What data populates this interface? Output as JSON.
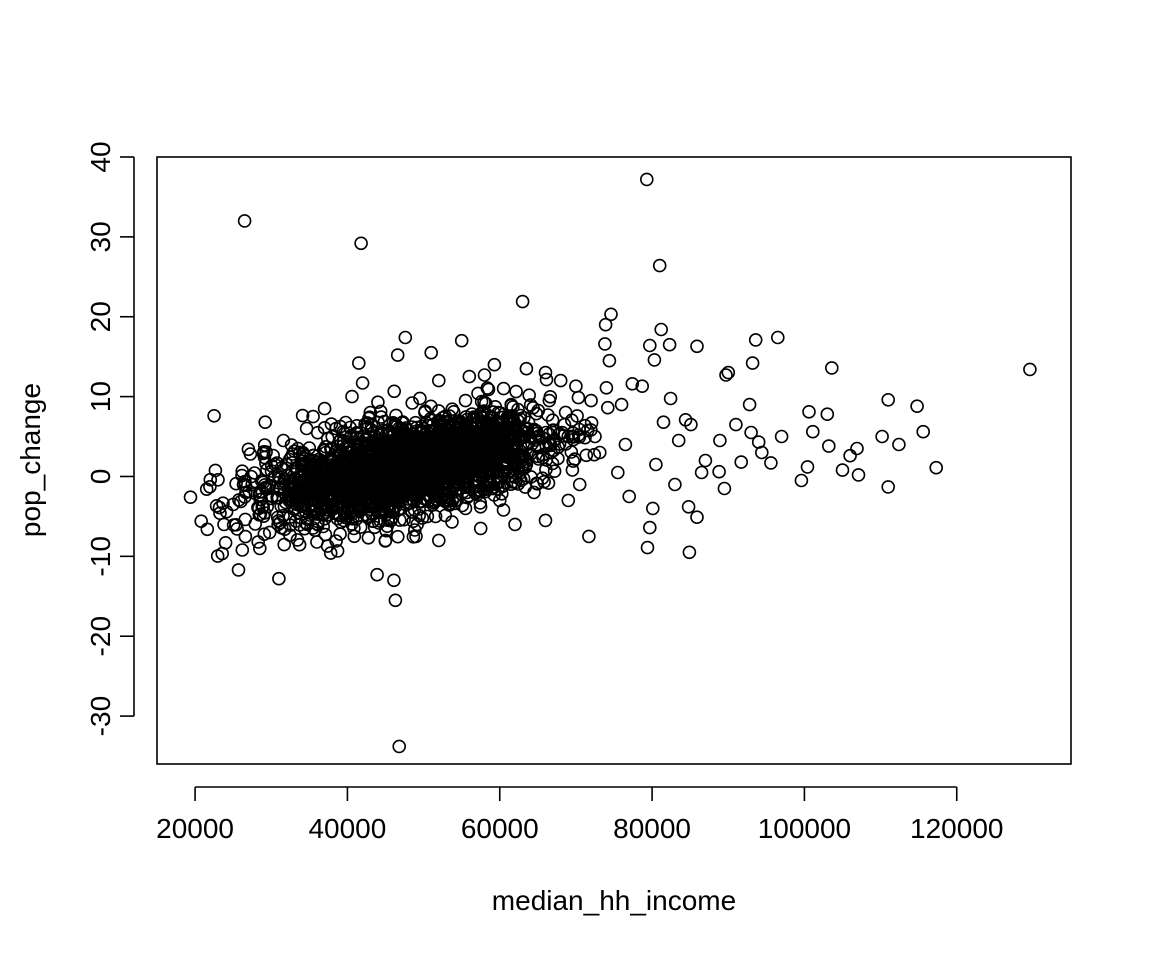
{
  "chart_data": {
    "type": "scatter",
    "title": "",
    "xlabel": "median_hh_income",
    "ylabel": "pop_change",
    "xlim": [
      15000,
      135000
    ],
    "ylim": [
      -36,
      40
    ],
    "x_ticks": [
      20000,
      40000,
      60000,
      80000,
      100000,
      120000
    ],
    "x_tick_labels": [
      "20000",
      "40000",
      "60000",
      "80000",
      "100000",
      "120000"
    ],
    "y_ticks": [
      -30,
      -20,
      -10,
      0,
      10,
      20,
      30,
      40
    ],
    "y_tick_labels": [
      "-30",
      "-20",
      "-10",
      "0",
      "10",
      "20",
      "30",
      "40"
    ],
    "grid": false,
    "legend": "none",
    "marker": "open-circle",
    "color": "#000000",
    "series": [
      {
        "points": [
          [
            26500,
            32.0
          ],
          [
            41800,
            29.2
          ],
          [
            79300,
            37.2
          ],
          [
            81000,
            26.4
          ],
          [
            63000,
            21.9
          ],
          [
            74600,
            20.3
          ],
          [
            73900,
            19.0
          ],
          [
            81200,
            18.4
          ],
          [
            47600,
            17.4
          ],
          [
            55000,
            17.0
          ],
          [
            96500,
            17.4
          ],
          [
            93600,
            17.1
          ],
          [
            82300,
            16.5
          ],
          [
            85900,
            16.3
          ],
          [
            73800,
            16.6
          ],
          [
            51000,
            15.5
          ],
          [
            46600,
            15.2
          ],
          [
            79700,
            16.4
          ],
          [
            80300,
            14.6
          ],
          [
            74400,
            14.5
          ],
          [
            41500,
            14.2
          ],
          [
            59300,
            14.0
          ],
          [
            93200,
            14.2
          ],
          [
            103600,
            13.6
          ],
          [
            129600,
            13.4
          ],
          [
            90000,
            13.0
          ],
          [
            89700,
            12.7
          ],
          [
            77400,
            11.6
          ],
          [
            78700,
            11.3
          ],
          [
            74000,
            11.1
          ],
          [
            42000,
            11.7
          ],
          [
            111000,
            9.6
          ],
          [
            114800,
            8.8
          ],
          [
            100600,
            8.1
          ],
          [
            103000,
            7.8
          ],
          [
            84400,
            7.1
          ],
          [
            85100,
            6.5
          ],
          [
            92800,
            9.0
          ],
          [
            88900,
            4.5
          ],
          [
            101100,
            5.6
          ],
          [
            110200,
            5.0
          ],
          [
            115600,
            5.6
          ],
          [
            112400,
            4.0
          ],
          [
            103200,
            3.8
          ],
          [
            106900,
            3.5
          ],
          [
            106000,
            2.6
          ],
          [
            117300,
            1.1
          ],
          [
            105000,
            0.8
          ],
          [
            107100,
            0.2
          ],
          [
            100400,
            1.2
          ],
          [
            99600,
            -0.5
          ],
          [
            111000,
            -1.3
          ],
          [
            95600,
            1.7
          ],
          [
            94400,
            3.0
          ],
          [
            91700,
            1.8
          ],
          [
            88800,
            0.6
          ],
          [
            84800,
            -3.8
          ],
          [
            84900,
            -9.5
          ],
          [
            79400,
            -8.9
          ],
          [
            79700,
            -6.4
          ],
          [
            85900,
            -5.1
          ],
          [
            80100,
            -4.0
          ],
          [
            71700,
            -7.5
          ],
          [
            22500,
            7.6
          ],
          [
            27000,
            3.4
          ],
          [
            29200,
            6.8
          ],
          [
            31600,
            4.5
          ],
          [
            19400,
            -2.6
          ],
          [
            20800,
            -5.6
          ],
          [
            22000,
            -0.4
          ],
          [
            23200,
            -3.9
          ],
          [
            25700,
            -11.7
          ],
          [
            26200,
            -9.2
          ],
          [
            31000,
            -12.8
          ],
          [
            43900,
            -12.3
          ],
          [
            46100,
            -13.0
          ],
          [
            46300,
            -15.5
          ],
          [
            46800,
            -33.8
          ],
          [
            40600,
            10.0
          ],
          [
            44000,
            9.3
          ],
          [
            37000,
            8.5
          ],
          [
            35500,
            7.5
          ],
          [
            60500,
            11.0
          ],
          [
            63500,
            13.5
          ],
          [
            56000,
            12.5
          ],
          [
            52000,
            12.0
          ],
          [
            68000,
            12.0
          ],
          [
            66000,
            13.0
          ],
          [
            58000,
            12.7
          ],
          [
            70000,
            11.3
          ],
          [
            72000,
            9.5
          ],
          [
            76000,
            9.0
          ],
          [
            24000,
            -8.3
          ],
          [
            28500,
            -9.0
          ],
          [
            36000,
            -8.2
          ],
          [
            45000,
            -8.0
          ],
          [
            49000,
            -7.5
          ],
          [
            52000,
            -8.0
          ],
          [
            57500,
            -6.5
          ],
          [
            62000,
            -6.0
          ],
          [
            66000,
            -5.5
          ],
          [
            69000,
            -3.0
          ],
          [
            77000,
            -2.5
          ],
          [
            83000,
            -1.0
          ],
          [
            87000,
            2.0
          ],
          [
            91000,
            6.5
          ],
          [
            93000,
            5.5
          ],
          [
            97000,
            5.0
          ],
          [
            89500,
            -1.5
          ],
          [
            94000,
            4.3
          ],
          [
            81500,
            6.8
          ],
          [
            83500,
            4.5
          ],
          [
            72500,
            5.0
          ],
          [
            76500,
            4.0
          ],
          [
            68500,
            6.5
          ],
          [
            66500,
            9.5
          ],
          [
            61500,
            9.0
          ],
          [
            55500,
            9.5
          ],
          [
            48500,
            9.2
          ],
          [
            43000,
            8.0
          ],
          [
            38500,
            6.0
          ],
          [
            33500,
            3.5
          ],
          [
            30500,
            1.5
          ],
          [
            27500,
            -1.0
          ],
          [
            25000,
            -3.5
          ],
          [
            23800,
            -6.0
          ],
          [
            29800,
            -7.0
          ],
          [
            34500,
            -5.8
          ],
          [
            39500,
            -5.5
          ],
          [
            44500,
            -4.5
          ],
          [
            50500,
            -5.0
          ],
          [
            55500,
            -4.0
          ],
          [
            60000,
            -3.0
          ],
          [
            64500,
            -2.0
          ],
          [
            70500,
            -1.0
          ],
          [
            75500,
            0.5
          ],
          [
            80500,
            1.5
          ],
          [
            86500,
            0.5
          ]
        ]
      }
    ],
    "cluster": {
      "points": 2600,
      "x_mean": 48000,
      "x_sd": 9000,
      "y_intercept": -8.0,
      "y_slope_per_1000": 0.19,
      "y_sd": 2.6
    }
  }
}
